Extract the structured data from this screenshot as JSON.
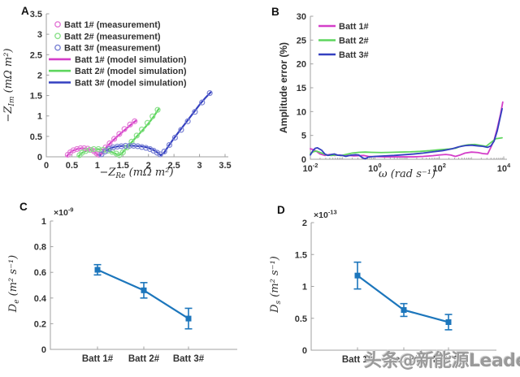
{
  "watermark": {
    "text": "头条@新能源Leader"
  },
  "panels": {
    "A": {
      "label": "A"
    },
    "B": {
      "label": "B"
    },
    "C": {
      "label": "C"
    },
    "D": {
      "label": "D"
    }
  },
  "chart_data": [
    {
      "id": "A",
      "type": "line+scatter",
      "xlabel": {
        "main": "−Z",
        "sub": "Re",
        "rest": " (mΩ m²)"
      },
      "ylabel": {
        "main": "−Z",
        "sub": "Im",
        "rest": " (mΩ m²)"
      },
      "xlim": [
        0,
        3.5
      ],
      "ylim": [
        0,
        3.5
      ],
      "xticks": [
        0,
        0.5,
        1,
        1.5,
        2,
        2.5,
        3,
        3.5
      ],
      "yticks": [
        0,
        0.5,
        1,
        1.5,
        2,
        2.5,
        3,
        3.5
      ],
      "grid": false,
      "legend_position": "top-left",
      "series": [
        {
          "name": "Batt 1# (measurement)",
          "kind": "scatter",
          "color": "#e379d6",
          "points": [
            [
              0.42,
              0.05
            ],
            [
              0.47,
              0.11
            ],
            [
              0.53,
              0.16
            ],
            [
              0.6,
              0.19
            ],
            [
              0.67,
              0.21
            ],
            [
              0.74,
              0.21
            ],
            [
              0.81,
              0.2
            ],
            [
              0.88,
              0.17
            ],
            [
              0.94,
              0.13
            ],
            [
              0.99,
              0.08
            ],
            [
              1.03,
              0.05
            ],
            [
              1.09,
              0.13
            ],
            [
              1.16,
              0.23
            ],
            [
              1.24,
              0.33
            ],
            [
              1.33,
              0.44
            ],
            [
              1.43,
              0.56
            ],
            [
              1.53,
              0.68
            ],
            [
              1.64,
              0.79
            ],
            [
              1.73,
              0.87
            ]
          ]
        },
        {
          "name": "Batt 2# (measurement)",
          "kind": "scatter",
          "color": "#8ae08a",
          "points": [
            [
              0.65,
              0.04
            ],
            [
              0.7,
              0.1
            ],
            [
              0.77,
              0.14
            ],
            [
              0.85,
              0.17
            ],
            [
              0.93,
              0.19
            ],
            [
              1.02,
              0.19
            ],
            [
              1.11,
              0.17
            ],
            [
              1.2,
              0.15
            ],
            [
              1.29,
              0.12
            ],
            [
              1.37,
              0.08
            ],
            [
              1.43,
              0.04
            ],
            [
              1.5,
              0.11
            ],
            [
              1.58,
              0.23
            ],
            [
              1.67,
              0.37
            ],
            [
              1.77,
              0.52
            ],
            [
              1.87,
              0.67
            ],
            [
              1.98,
              0.83
            ],
            [
              2.08,
              0.99
            ],
            [
              2.18,
              1.15
            ]
          ]
        },
        {
          "name": "Batt 3# (measurement)",
          "kind": "scatter",
          "color": "#7a82d4",
          "points": [
            [
              1.08,
              0.06
            ],
            [
              1.15,
              0.13
            ],
            [
              1.23,
              0.19
            ],
            [
              1.31,
              0.23
            ],
            [
              1.39,
              0.25
            ],
            [
              1.47,
              0.26
            ],
            [
              1.55,
              0.27
            ],
            [
              1.63,
              0.27
            ],
            [
              1.71,
              0.27
            ],
            [
              1.79,
              0.26
            ],
            [
              1.87,
              0.24
            ],
            [
              1.95,
              0.22
            ],
            [
              2.03,
              0.19
            ],
            [
              2.1,
              0.15
            ],
            [
              2.17,
              0.1
            ],
            [
              2.23,
              0.06
            ],
            [
              2.31,
              0.13
            ],
            [
              2.41,
              0.29
            ],
            [
              2.52,
              0.47
            ],
            [
              2.64,
              0.66
            ],
            [
              2.77,
              0.87
            ],
            [
              2.91,
              1.1
            ],
            [
              3.05,
              1.33
            ],
            [
              3.2,
              1.56
            ]
          ]
        },
        {
          "name": "Batt 1# (model simulation)",
          "kind": "line",
          "color": "#d43ec9",
          "points": [
            [
              0.4,
              0.01
            ],
            [
              0.45,
              0.09
            ],
            [
              0.52,
              0.15
            ],
            [
              0.6,
              0.19
            ],
            [
              0.69,
              0.21
            ],
            [
              0.78,
              0.2
            ],
            [
              0.87,
              0.17
            ],
            [
              0.94,
              0.12
            ],
            [
              1.0,
              0.06
            ],
            [
              1.04,
              0.03
            ],
            [
              1.1,
              0.12
            ],
            [
              1.18,
              0.24
            ],
            [
              1.28,
              0.37
            ],
            [
              1.4,
              0.51
            ],
            [
              1.52,
              0.64
            ],
            [
              1.64,
              0.77
            ],
            [
              1.76,
              0.89
            ]
          ]
        },
        {
          "name": "Batt 2# (model simulation)",
          "kind": "line",
          "color": "#5ed65e",
          "points": [
            [
              0.63,
              0.01
            ],
            [
              0.69,
              0.09
            ],
            [
              0.77,
              0.14
            ],
            [
              0.87,
              0.18
            ],
            [
              0.98,
              0.19
            ],
            [
              1.09,
              0.18
            ],
            [
              1.21,
              0.15
            ],
            [
              1.32,
              0.1
            ],
            [
              1.41,
              0.04
            ],
            [
              1.46,
              0.06
            ],
            [
              1.54,
              0.17
            ],
            [
              1.64,
              0.31
            ],
            [
              1.75,
              0.47
            ],
            [
              1.87,
              0.63
            ],
            [
              1.99,
              0.8
            ],
            [
              2.1,
              0.98
            ],
            [
              2.2,
              1.17
            ]
          ]
        },
        {
          "name": "Batt 3# (model simulation)",
          "kind": "line",
          "color": "#3440c0",
          "points": [
            [
              1.05,
              0.02
            ],
            [
              1.12,
              0.11
            ],
            [
              1.2,
              0.18
            ],
            [
              1.3,
              0.23
            ],
            [
              1.42,
              0.26
            ],
            [
              1.55,
              0.27
            ],
            [
              1.7,
              0.27
            ],
            [
              1.84,
              0.26
            ],
            [
              1.97,
              0.23
            ],
            [
              2.08,
              0.18
            ],
            [
              2.17,
              0.11
            ],
            [
              2.24,
              0.04
            ],
            [
              2.3,
              0.09
            ],
            [
              2.38,
              0.24
            ],
            [
              2.48,
              0.42
            ],
            [
              2.6,
              0.62
            ],
            [
              2.73,
              0.83
            ],
            [
              2.87,
              1.06
            ],
            [
              3.01,
              1.29
            ],
            [
              3.12,
              1.45
            ],
            [
              3.22,
              1.58
            ]
          ]
        }
      ]
    },
    {
      "id": "B",
      "type": "line",
      "xscale": "log",
      "xlabel": {
        "main": "ω",
        "sub": "",
        "rest": " (rad s⁻¹)"
      },
      "ylabel_plain": "Amplitude error (%)",
      "xlim_exp": [
        -2,
        4
      ],
      "ylim": [
        0,
        30
      ],
      "xticks_exp": [
        -2,
        0,
        2,
        4
      ],
      "xtick_labels": [
        "10⁻²",
        "10⁰",
        "10²",
        "10⁴"
      ],
      "yticks": [
        0,
        5,
        10,
        15,
        20,
        25,
        30
      ],
      "grid": false,
      "legend_position": "top-left",
      "series": [
        {
          "name": "Batt 1#",
          "color": "#d43ec9",
          "points_log10x": [
            [
              -2,
              2.2
            ],
            [
              -1.9,
              2.0
            ],
            [
              -1.8,
              1.6
            ],
            [
              -1.7,
              1.1
            ],
            [
              -1.55,
              0.8
            ],
            [
              -1.4,
              1.0
            ],
            [
              -1.25,
              0.8
            ],
            [
              -1.1,
              0.9
            ],
            [
              -0.95,
              0.7
            ],
            [
              -0.8,
              0.8
            ],
            [
              -0.65,
              0.7
            ],
            [
              -0.5,
              0.75
            ],
            [
              -0.35,
              0.8
            ],
            [
              -0.2,
              0.6
            ],
            [
              0,
              0.55
            ],
            [
              0.3,
              0.5
            ],
            [
              0.6,
              0.5
            ],
            [
              0.9,
              0.5
            ],
            [
              1.2,
              0.5
            ],
            [
              1.5,
              0.6
            ],
            [
              1.8,
              0.75
            ],
            [
              2.0,
              0.9
            ],
            [
              2.2,
              1.0
            ],
            [
              2.35,
              0.9
            ],
            [
              2.5,
              0.6
            ],
            [
              2.65,
              0.9
            ],
            [
              2.8,
              1.3
            ],
            [
              3.0,
              1.5
            ],
            [
              3.2,
              1.4
            ],
            [
              3.35,
              1.2
            ],
            [
              3.5,
              1.1
            ],
            [
              3.6,
              2.5
            ],
            [
              3.7,
              4.0
            ],
            [
              3.8,
              6.5
            ],
            [
              3.9,
              9.5
            ],
            [
              3.97,
              12.0
            ]
          ]
        },
        {
          "name": "Batt 2#",
          "color": "#5ed65e",
          "points_log10x": [
            [
              -2,
              1.2
            ],
            [
              -1.9,
              1.6
            ],
            [
              -1.8,
              1.7
            ],
            [
              -1.65,
              1.3
            ],
            [
              -1.5,
              0.9
            ],
            [
              -1.35,
              0.8
            ],
            [
              -1.2,
              0.9
            ],
            [
              -1.05,
              0.75
            ],
            [
              -0.9,
              1.0
            ],
            [
              -0.7,
              1.3
            ],
            [
              -0.5,
              1.45
            ],
            [
              -0.3,
              1.5
            ],
            [
              -0.1,
              1.45
            ],
            [
              0.2,
              1.4
            ],
            [
              0.5,
              1.45
            ],
            [
              0.8,
              1.5
            ],
            [
              1.1,
              1.55
            ],
            [
              1.4,
              1.65
            ],
            [
              1.7,
              1.8
            ],
            [
              2.0,
              2.0
            ],
            [
              2.3,
              2.15
            ],
            [
              2.5,
              2.3
            ],
            [
              2.7,
              2.8
            ],
            [
              2.9,
              3.05
            ],
            [
              3.1,
              3.1
            ],
            [
              3.3,
              2.9
            ],
            [
              3.45,
              2.7
            ],
            [
              3.6,
              3.5
            ],
            [
              3.75,
              4.3
            ],
            [
              3.95,
              4.5
            ]
          ]
        },
        {
          "name": "Batt 3#",
          "color": "#3440c0",
          "points_log10x": [
            [
              -2,
              0.9
            ],
            [
              -1.92,
              1.8
            ],
            [
              -1.85,
              2.3
            ],
            [
              -1.78,
              2.4
            ],
            [
              -1.65,
              1.9
            ],
            [
              -1.55,
              1.1
            ],
            [
              -1.45,
              0.8
            ],
            [
              -1.35,
              1.0
            ],
            [
              -1.25,
              1.1
            ],
            [
              -1.15,
              0.85
            ],
            [
              -1.0,
              0.8
            ],
            [
              -0.9,
              0.6
            ],
            [
              -0.75,
              0.85
            ],
            [
              -0.6,
              0.95
            ],
            [
              -0.5,
              0.9
            ],
            [
              -0.38,
              0.3
            ],
            [
              -0.3,
              0.1
            ],
            [
              -0.2,
              0.45
            ],
            [
              0,
              0.6
            ],
            [
              0.3,
              0.7
            ],
            [
              0.6,
              0.8
            ],
            [
              0.9,
              0.95
            ],
            [
              1.2,
              1.1
            ],
            [
              1.5,
              1.3
            ],
            [
              1.8,
              1.55
            ],
            [
              2.1,
              1.8
            ],
            [
              2.4,
              2.2
            ],
            [
              2.6,
              2.6
            ],
            [
              2.8,
              2.85
            ],
            [
              3.0,
              2.95
            ],
            [
              3.2,
              2.8
            ],
            [
              3.35,
              2.7
            ],
            [
              3.5,
              2.5
            ],
            [
              3.6,
              2.8
            ],
            [
              3.7,
              3.8
            ],
            [
              3.8,
              6.0
            ],
            [
              3.95,
              10.6
            ]
          ]
        }
      ]
    },
    {
      "id": "C",
      "type": "errorbar-line",
      "ylabel": {
        "main": "D",
        "sub": "e",
        "rest": " (m² s⁻¹)"
      },
      "exponent": {
        "base": "×10",
        "sup": "-9"
      },
      "categories": [
        "Batt 1#",
        "Batt 2#",
        "Batt 3#"
      ],
      "values": [
        0.62,
        0.46,
        0.24
      ],
      "errors": [
        0.04,
        0.06,
        0.08
      ],
      "ylim": [
        0,
        1
      ],
      "yticks": [
        0,
        0.2,
        0.4,
        0.6,
        0.8,
        1
      ],
      "color": "#1c76bc",
      "grid": false
    },
    {
      "id": "D",
      "type": "errorbar-line",
      "ylabel": {
        "main": "D",
        "sub": "s",
        "rest": " (m² s⁻¹)"
      },
      "exponent": {
        "base": "×10",
        "sup": "-13"
      },
      "categories": [
        "Batt 1#",
        "Batt 2#",
        "Batt 3#"
      ],
      "values": [
        1.17,
        0.63,
        0.44
      ],
      "errors": [
        0.21,
        0.1,
        0.12
      ],
      "ylim": [
        0,
        2
      ],
      "yticks": [
        0,
        0.5,
        1,
        1.5,
        2
      ],
      "color": "#1c76bc",
      "grid": false
    }
  ]
}
